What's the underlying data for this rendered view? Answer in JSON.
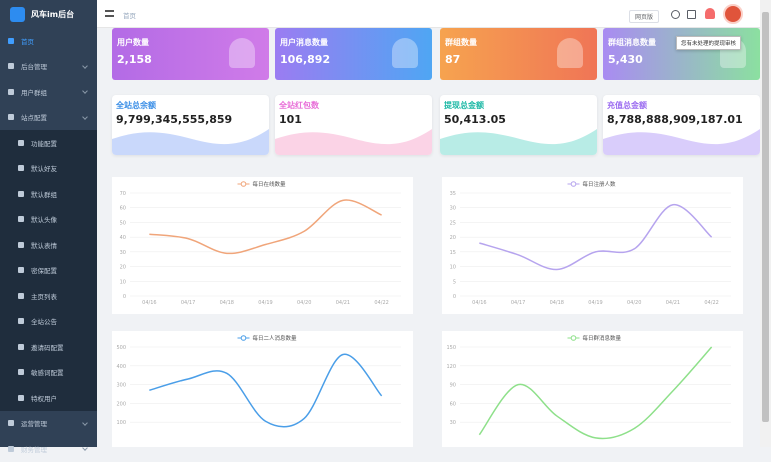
{
  "sidebar": {
    "logo": "风车im后台",
    "menu": [
      "首页",
      "后台管理",
      "用户群组",
      "站点配置",
      "功能配置",
      "默认好友",
      "默认群组",
      "默认头像",
      "默认表情",
      "密保配置",
      "主页列表",
      "全站公告",
      "邀请码配置",
      "敏感词配置",
      "特权用户",
      "运营管理",
      "财务管理"
    ]
  },
  "header": {
    "breadcrumb": "首页",
    "web_button": "网页版",
    "tooltip": "您有未处理的提现审核"
  },
  "cards": [
    {
      "label": "用户数量",
      "value": "2,158"
    },
    {
      "label": "用户消息数量",
      "value": "106,892"
    },
    {
      "label": "群组数量",
      "value": "87"
    },
    {
      "label": "群组消息数量",
      "value": "5,430"
    },
    {
      "label": "全站总余额",
      "value": "9,799,345,555,859"
    },
    {
      "label": "全站红包数",
      "value": "101"
    },
    {
      "label": "提现总金额",
      "value": "50,413.05"
    },
    {
      "label": "充值总金额",
      "value": "8,788,888,909,187.01"
    }
  ],
  "chart_data": [
    {
      "type": "line",
      "categories": [
        "04/16",
        "04/17",
        "04/18",
        "04/19",
        "04/20",
        "04/21",
        "04/22"
      ],
      "series": [
        {
          "name": "每日在线数量",
          "color": "#f0a57a",
          "values": [
            42,
            39,
            29,
            35,
            44,
            65,
            55
          ]
        }
      ],
      "ylim": [
        0,
        70
      ],
      "yticks": [
        0,
        10,
        20,
        30,
        40,
        50,
        60,
        70
      ],
      "grid": true
    },
    {
      "type": "line",
      "categories": [
        "04/16",
        "04/17",
        "04/18",
        "04/19",
        "04/20",
        "04/21",
        "04/22"
      ],
      "series": [
        {
          "name": "每日注册人数",
          "color": "#b6a4ee",
          "values": [
            18,
            14,
            9,
            15,
            16,
            31,
            20
          ]
        }
      ],
      "ylim": [
        0,
        35
      ],
      "yticks": [
        0,
        5,
        10,
        15,
        20,
        25,
        30,
        35
      ],
      "grid": true
    },
    {
      "type": "line",
      "categories": [
        null,
        null,
        null,
        null,
        null,
        null,
        null
      ],
      "series": [
        {
          "name": "每日二人消息数量",
          "color": "#4a9ee8",
          "values": [
            270,
            330,
            360,
            105,
            120,
            460,
            240
          ]
        }
      ],
      "ylim": [
        0,
        500
      ],
      "yticks": [
        100,
        200,
        300,
        400,
        500
      ],
      "grid": true
    },
    {
      "type": "line",
      "categories": [
        null,
        null,
        null,
        null,
        null,
        null,
        null
      ],
      "series": [
        {
          "name": "每日群消息数量",
          "color": "#8ee08a",
          "values": [
            10,
            90,
            40,
            5,
            20,
            80,
            150
          ]
        }
      ],
      "ylim": [
        0,
        150
      ],
      "yticks": [
        30,
        60,
        90,
        120,
        150
      ],
      "grid": true
    }
  ]
}
